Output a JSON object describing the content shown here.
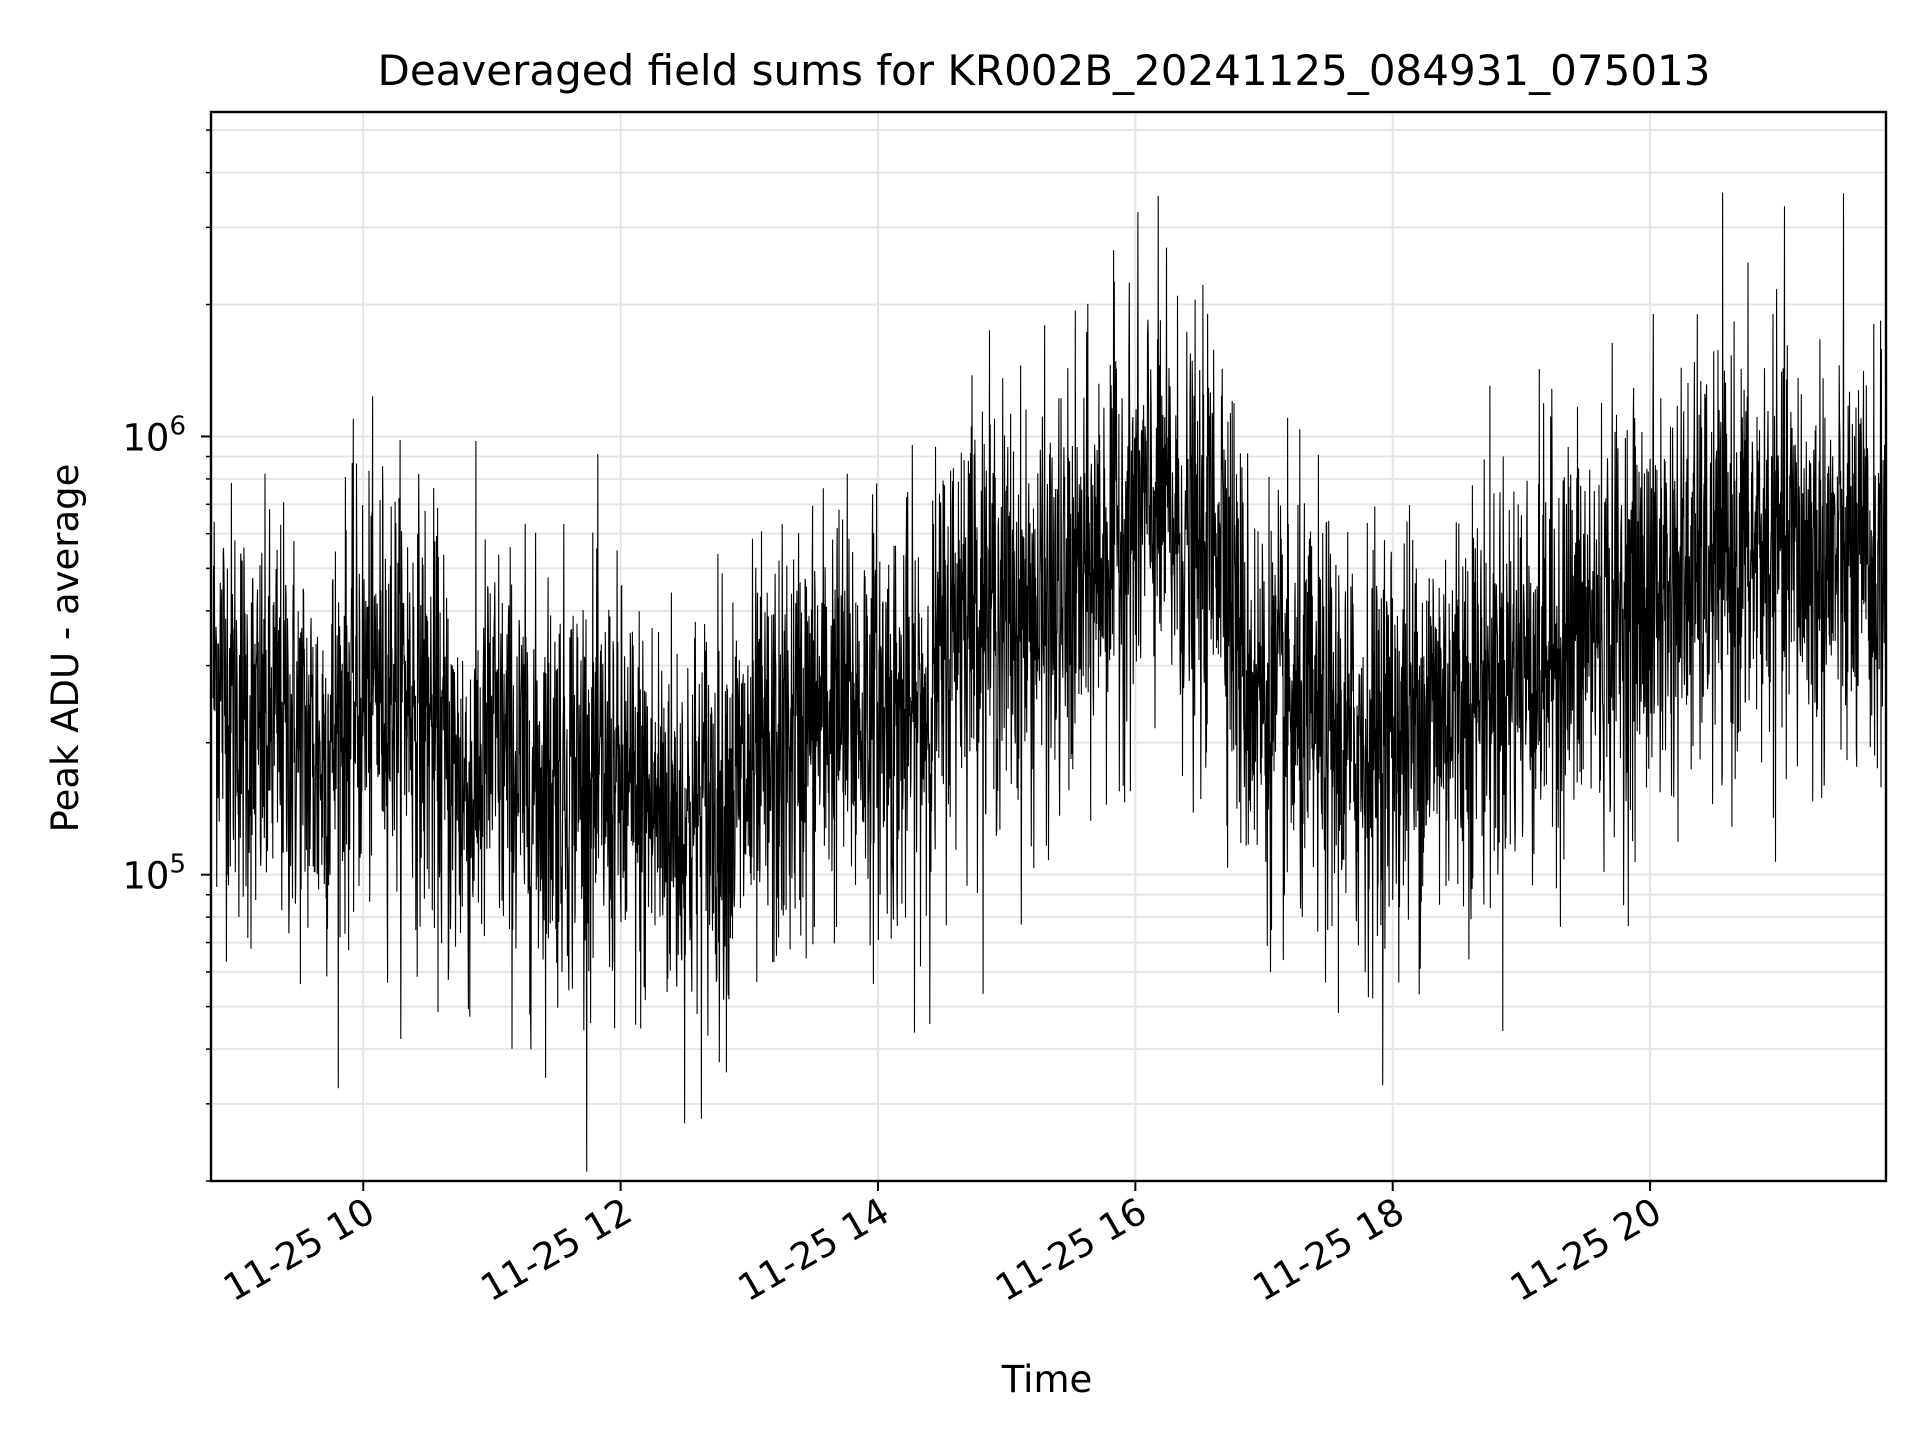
{
  "chart_data": {
    "type": "line",
    "title": "Deaveraged field sums for KR002B_20241125_084931_075013",
    "xlabel": "Time",
    "ylabel": "Peak ADU - average",
    "x_ticks": [
      "11-25 10",
      "11-25 12",
      "11-25 14",
      "11-25 16",
      "11-25 18",
      "11-25 20"
    ],
    "y_ticks": [
      {
        "value": 100000,
        "label_base": "10",
        "label_exp": "5"
      },
      {
        "value": 1000000,
        "label_base": "10",
        "label_exp": "6"
      }
    ],
    "xlim": [
      "2024-11-25 08:49",
      "2024-11-25 21:50"
    ],
    "ylim": [
      20000,
      5500000
    ],
    "y_scale": "log",
    "grid": true,
    "legend": "none",
    "line_color": "#000000",
    "grid_color": "#e5e5e5",
    "series": [
      {
        "points": [
          [
            "2024-11-25 08:50",
            300000
          ],
          [
            "2024-11-25 09:00",
            250000
          ],
          [
            "2024-11-25 09:10",
            200000
          ],
          [
            "2024-11-25 09:20",
            220000
          ],
          [
            "2024-11-25 09:30",
            200000
          ],
          [
            "2024-11-25 09:40",
            180000
          ],
          [
            "2024-11-25 09:50",
            230000
          ],
          [
            "2024-11-25 10:00",
            260000
          ],
          [
            "2024-11-25 10:10",
            280000
          ],
          [
            "2024-11-25 10:20",
            270000
          ],
          [
            "2024-11-25 10:30",
            230000
          ],
          [
            "2024-11-25 10:40",
            170000
          ],
          [
            "2024-11-25 10:50",
            150000
          ],
          [
            "2024-11-25 11:00",
            200000
          ],
          [
            "2024-11-25 11:10",
            170000
          ],
          [
            "2024-11-25 11:20",
            160000
          ],
          [
            "2024-11-25 11:30",
            170000
          ],
          [
            "2024-11-25 11:40",
            170000
          ],
          [
            "2024-11-25 11:50",
            160000
          ],
          [
            "2024-11-25 12:00",
            150000
          ],
          [
            "2024-11-25 12:10",
            140000
          ],
          [
            "2024-11-25 12:20",
            140000
          ],
          [
            "2024-11-25 12:30",
            130000
          ],
          [
            "2024-11-25 12:40",
            140000
          ],
          [
            "2024-11-25 12:50",
            150000
          ],
          [
            "2024-11-25 13:00",
            160000
          ],
          [
            "2024-11-25 13:10",
            170000
          ],
          [
            "2024-11-25 13:20",
            200000
          ],
          [
            "2024-11-25 13:30",
            230000
          ],
          [
            "2024-11-25 13:40",
            240000
          ],
          [
            "2024-11-25 13:50",
            230000
          ],
          [
            "2024-11-25 14:00",
            240000
          ],
          [
            "2024-11-25 14:10",
            220000
          ],
          [
            "2024-11-25 14:20",
            230000
          ],
          [
            "2024-11-25 14:30",
            300000
          ],
          [
            "2024-11-25 14:40",
            450000
          ],
          [
            "2024-11-25 14:50",
            420000
          ],
          [
            "2024-11-25 15:00",
            400000
          ],
          [
            "2024-11-25 15:10",
            380000
          ],
          [
            "2024-11-25 15:20",
            400000
          ],
          [
            "2024-11-25 15:30",
            420000
          ],
          [
            "2024-11-25 15:40",
            500000
          ],
          [
            "2024-11-25 15:50",
            600000
          ],
          [
            "2024-11-25 16:00",
            650000
          ],
          [
            "2024-11-25 16:10",
            700000
          ],
          [
            "2024-11-25 16:20",
            600000
          ],
          [
            "2024-11-25 16:30",
            500000
          ],
          [
            "2024-11-25 16:40",
            700000
          ],
          [
            "2024-11-25 16:50",
            300000
          ],
          [
            "2024-11-25 17:00",
            250000
          ],
          [
            "2024-11-25 17:10",
            230000
          ],
          [
            "2024-11-25 17:20",
            220000
          ],
          [
            "2024-11-25 17:30",
            210000
          ],
          [
            "2024-11-25 17:40",
            190000
          ],
          [
            "2024-11-25 17:50",
            200000
          ],
          [
            "2024-11-25 18:00",
            210000
          ],
          [
            "2024-11-25 18:10",
            220000
          ],
          [
            "2024-11-25 18:20",
            240000
          ],
          [
            "2024-11-25 18:30",
            250000
          ],
          [
            "2024-11-25 18:40",
            270000
          ],
          [
            "2024-11-25 18:50",
            280000
          ],
          [
            "2024-11-25 19:00",
            300000
          ],
          [
            "2024-11-25 19:10",
            320000
          ],
          [
            "2024-11-25 19:20",
            340000
          ],
          [
            "2024-11-25 19:30",
            360000
          ],
          [
            "2024-11-25 19:40",
            380000
          ],
          [
            "2024-11-25 19:50",
            400000
          ],
          [
            "2024-11-25 20:00",
            420000
          ],
          [
            "2024-11-25 20:10",
            450000
          ],
          [
            "2024-11-25 20:20",
            480000
          ],
          [
            "2024-11-25 20:30",
            500000
          ],
          [
            "2024-11-25 20:40",
            520000
          ],
          [
            "2024-11-25 20:50",
            540000
          ],
          [
            "2024-11-25 21:00",
            550000
          ],
          [
            "2024-11-25 21:10",
            530000
          ],
          [
            "2024-11-25 21:20",
            520000
          ],
          [
            "2024-11-25 21:30",
            500000
          ],
          [
            "2024-11-25 21:40",
            480000
          ],
          [
            "2024-11-25 21:50",
            500000
          ]
        ]
      }
    ]
  }
}
